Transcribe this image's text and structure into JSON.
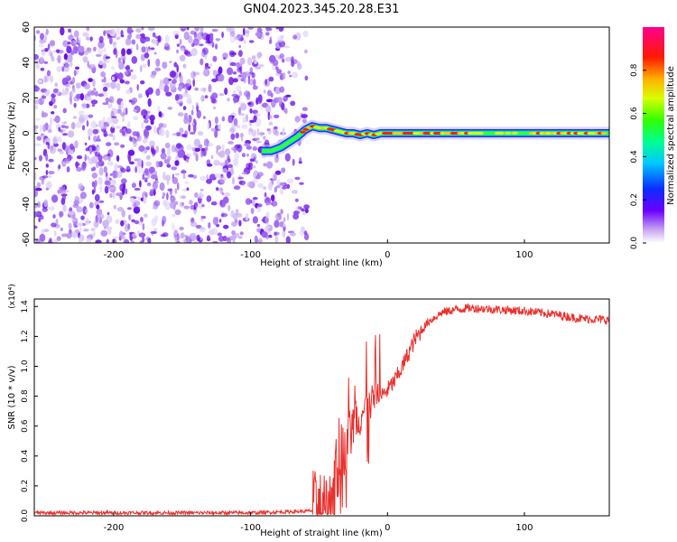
{
  "title": "GN04.2023.345.20.28.E31",
  "colors": {
    "snr_line": "#e8302c",
    "frame": "#000000",
    "spec_noise": "#7a2de0"
  },
  "chart_data": [
    {
      "type": "heatmap",
      "xlabel": "Height of straight line (km)",
      "ylabel": "Frequency (Hz)",
      "xlim": [
        -258,
        162
      ],
      "ylim": [
        -62,
        60
      ],
      "xticks": [
        -200,
        -100,
        0,
        100
      ],
      "xtick_labels": [
        "-200",
        "-100",
        "0",
        "100"
      ],
      "yticks": [
        -60,
        -40,
        -20,
        0,
        20,
        40,
        60
      ],
      "ytick_labels": [
        "-60",
        "-40",
        "-20",
        "0",
        "20",
        "40",
        "60"
      ],
      "colorbar": {
        "label": "Normalized spectral amplitude",
        "range": [
          0,
          1
        ],
        "ticks": [
          0.0,
          0.2,
          0.4,
          0.6,
          0.8
        ],
        "tick_labels": [
          "0.0",
          "0.2",
          "0.4",
          "0.6",
          "0.8"
        ]
      },
      "noise_region_x": [
        -258,
        -65
      ],
      "ridge": {
        "x": [
          -92,
          -85,
          -78,
          -72,
          -66,
          -60,
          -55,
          -50,
          -45,
          -40,
          -35,
          -30,
          -25,
          -20,
          -15,
          -10,
          -5,
          0,
          10,
          162
        ],
        "y": [
          -10,
          -10,
          -8,
          -5,
          -2,
          2,
          4,
          3,
          3,
          2,
          1,
          0,
          0,
          -1,
          0,
          -1,
          0,
          0,
          0,
          0
        ]
      }
    },
    {
      "type": "line",
      "xlabel": "Height of straight line (km)",
      "ylabel": "SNR (10 * v/v)",
      "scale_label": "(x10⁴)",
      "xlim": [
        -258,
        162
      ],
      "ylim": [
        0,
        1.45
      ],
      "xticks": [
        -200,
        -100,
        0,
        100
      ],
      "xtick_labels": [
        "-200",
        "-100",
        "0",
        "100"
      ],
      "yticks": [
        0.0,
        0.2,
        0.4,
        0.6,
        0.8,
        1.0,
        1.2,
        1.4
      ],
      "ytick_labels": [
        "0.0",
        "0.2",
        "0.4",
        "0.6",
        "0.8",
        "1.0",
        "1.2",
        "1.4"
      ],
      "series": [
        {
          "profile_x": [
            -258,
            -100,
            -60,
            -50,
            -45,
            -40,
            -35,
            -30,
            -25,
            -20,
            -15,
            -10,
            -5,
            0,
            5,
            10,
            15,
            20,
            30,
            40,
            50,
            60,
            80,
            100,
            120,
            140,
            162
          ],
          "profile_y": [
            0.02,
            0.02,
            0.03,
            0.04,
            0.06,
            0.15,
            0.35,
            0.5,
            0.6,
            0.68,
            0.72,
            0.76,
            0.8,
            0.84,
            0.9,
            0.98,
            1.08,
            1.18,
            1.3,
            1.36,
            1.38,
            1.39,
            1.38,
            1.37,
            1.35,
            1.32,
            1.31
          ]
        }
      ]
    }
  ]
}
